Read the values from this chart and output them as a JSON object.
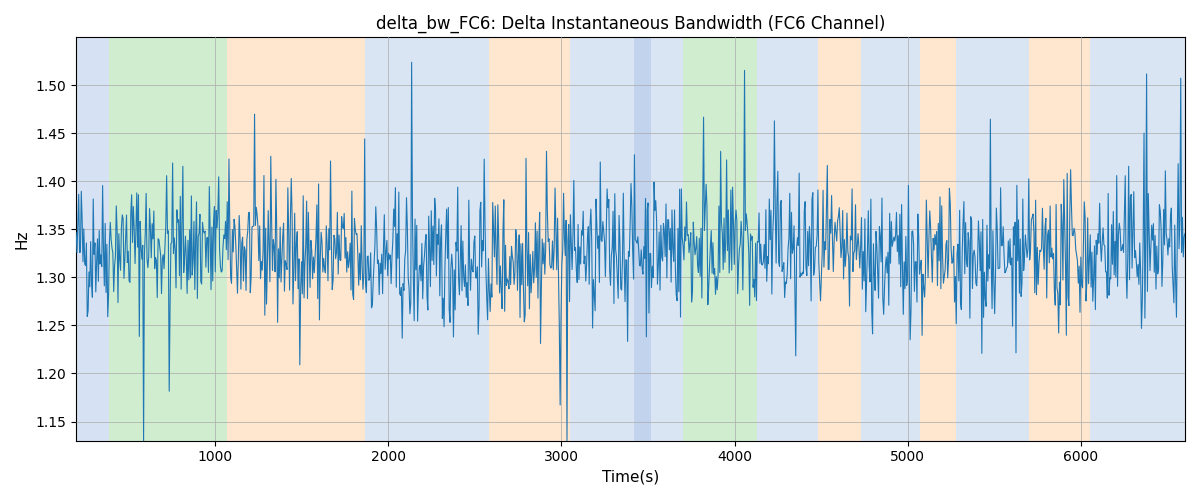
{
  "title": "delta_bw_FC6: Delta Instantaneous Bandwidth (FC6 Channel)",
  "xlabel": "Time(s)",
  "ylabel": "Hz",
  "xlim": [
    200,
    6600
  ],
  "ylim": [
    1.13,
    1.55
  ],
  "line_color": "#1f77b4",
  "line_width": 0.8,
  "background_color": "#ffffff",
  "grid_color": "#aaaaaa",
  "bands": [
    {
      "xmin": 200,
      "xmax": 390,
      "color": "#aec6e8",
      "alpha": 0.5
    },
    {
      "xmin": 390,
      "xmax": 1070,
      "color": "#98d898",
      "alpha": 0.45
    },
    {
      "xmin": 1070,
      "xmax": 1870,
      "color": "#ffc896",
      "alpha": 0.45
    },
    {
      "xmin": 1870,
      "xmax": 2580,
      "color": "#aec6e8",
      "alpha": 0.45
    },
    {
      "xmin": 2580,
      "xmax": 3050,
      "color": "#ffc896",
      "alpha": 0.45
    },
    {
      "xmin": 3050,
      "xmax": 3420,
      "color": "#aec6e8",
      "alpha": 0.45
    },
    {
      "xmin": 3420,
      "xmax": 3520,
      "color": "#aec6e8",
      "alpha": 0.75
    },
    {
      "xmin": 3520,
      "xmax": 3700,
      "color": "#aec6e8",
      "alpha": 0.45
    },
    {
      "xmin": 3700,
      "xmax": 4130,
      "color": "#98d898",
      "alpha": 0.45
    },
    {
      "xmin": 4130,
      "xmax": 4480,
      "color": "#aec6e8",
      "alpha": 0.45
    },
    {
      "xmin": 4480,
      "xmax": 4730,
      "color": "#ffc896",
      "alpha": 0.45
    },
    {
      "xmin": 4730,
      "xmax": 5070,
      "color": "#aec6e8",
      "alpha": 0.45
    },
    {
      "xmin": 5070,
      "xmax": 5280,
      "color": "#ffc896",
      "alpha": 0.45
    },
    {
      "xmin": 5280,
      "xmax": 5700,
      "color": "#aec6e8",
      "alpha": 0.45
    },
    {
      "xmin": 5700,
      "xmax": 6050,
      "color": "#ffc896",
      "alpha": 0.45
    },
    {
      "xmin": 6050,
      "xmax": 6600,
      "color": "#aec6e8",
      "alpha": 0.45
    }
  ],
  "seed": 42,
  "n_points": 1300,
  "signal_mean": 1.325,
  "noise_scale": 0.035
}
